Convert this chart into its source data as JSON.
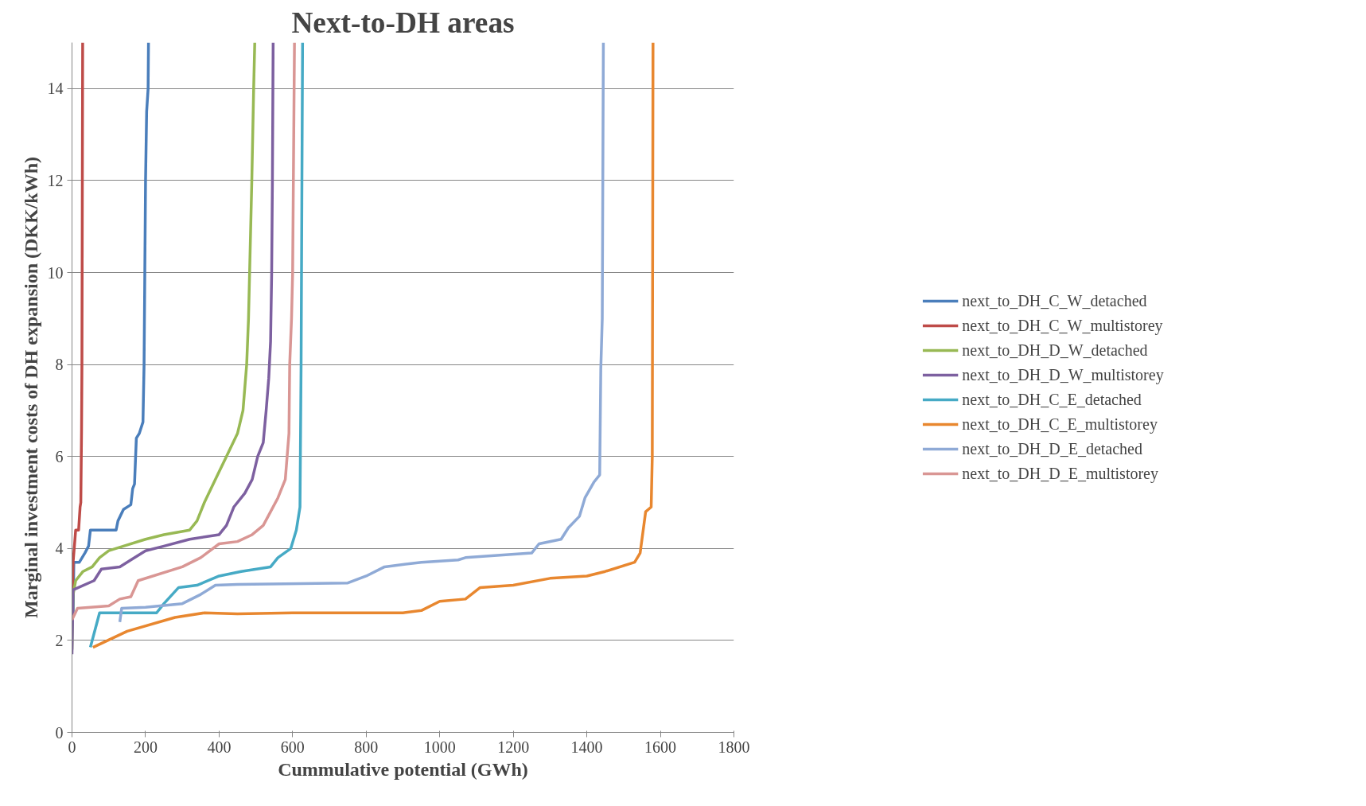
{
  "chart_data": {
    "type": "line",
    "title": "Next-to-DH areas",
    "xlabel": "Cummulative potential (GWh)",
    "ylabel": "Marginal investment costs of DH expansion (DKK/kWh)",
    "xlim": [
      0,
      1800
    ],
    "xticks": [
      0,
      200,
      400,
      600,
      800,
      1000,
      1200,
      1400,
      1600,
      1800
    ],
    "ylim": [
      0,
      15
    ],
    "yticks": [
      0,
      2,
      4,
      6,
      8,
      10,
      12,
      14
    ],
    "grid": "y",
    "legend": "right",
    "marker": "none",
    "line_style": "solid",
    "series": [
      {
        "name": "next_to_DH_C_W_detached",
        "color": "#4a7ebb",
        "x": [
          3,
          5,
          20,
          35,
          45,
          50,
          120,
          125,
          140,
          160,
          165,
          170,
          175,
          183,
          193,
          196,
          198,
          200,
          203,
          207,
          208
        ],
        "values": [
          2.5,
          3.7,
          3.7,
          3.9,
          4.05,
          4.4,
          4.4,
          4.6,
          4.85,
          4.95,
          5.3,
          5.4,
          6.4,
          6.5,
          6.75,
          8,
          10,
          12,
          13.5,
          14,
          15
        ]
      },
      {
        "name": "next_to_DH_C_W_multistorey",
        "color": "#be4b48",
        "x": [
          0,
          3,
          10,
          18,
          22,
          24,
          26,
          27,
          29
        ],
        "values": [
          2.5,
          3.7,
          4.4,
          4.4,
          4.9,
          5.0,
          6.6,
          8,
          15
        ]
      },
      {
        "name": "next_to_DH_D_W_detached",
        "color": "#98b954",
        "x": [
          0,
          3,
          10,
          30,
          55,
          75,
          100,
          140,
          200,
          250,
          320,
          340,
          360,
          390,
          420,
          450,
          465,
          475,
          480,
          483,
          489,
          494,
          497
        ],
        "values": [
          1.8,
          3,
          3.3,
          3.5,
          3.6,
          3.8,
          3.95,
          4.05,
          4.2,
          4.3,
          4.4,
          4.6,
          5.0,
          5.5,
          6.0,
          6.5,
          7.0,
          8,
          9,
          10,
          12,
          14,
          15
        ]
      },
      {
        "name": "next_to_DH_D_W_multistorey",
        "color": "#7d60a0",
        "x": [
          0,
          3,
          60,
          80,
          130,
          160,
          200,
          250,
          320,
          400,
          420,
          440,
          470,
          490,
          505,
          520,
          528,
          535,
          540,
          543,
          545,
          547
        ],
        "values": [
          1.7,
          3.1,
          3.3,
          3.55,
          3.6,
          3.75,
          3.95,
          4.05,
          4.2,
          4.3,
          4.5,
          4.9,
          5.2,
          5.5,
          6.0,
          6.3,
          7.0,
          7.7,
          8.5,
          10,
          12,
          15
        ]
      },
      {
        "name": "next_to_DH_C_E_detached",
        "color": "#46aac5",
        "x": [
          50,
          75,
          230,
          250,
          290,
          340,
          400,
          460,
          540,
          560,
          595,
          610,
          620,
          623,
          627
        ],
        "values": [
          1.85,
          2.6,
          2.6,
          2.8,
          3.15,
          3.2,
          3.4,
          3.5,
          3.6,
          3.8,
          4.0,
          4.4,
          4.9,
          8,
          15
        ]
      },
      {
        "name": "next_to_DH_C_E_multistorey",
        "color": "#e8872f",
        "x": [
          57,
          150,
          280,
          360,
          450,
          600,
          900,
          950,
          1000,
          1070,
          1110,
          1200,
          1300,
          1400,
          1450,
          1530,
          1545,
          1560,
          1575,
          1578,
          1580
        ],
        "values": [
          1.85,
          2.2,
          2.5,
          2.6,
          2.58,
          2.6,
          2.6,
          2.65,
          2.85,
          2.9,
          3.15,
          3.2,
          3.35,
          3.4,
          3.5,
          3.7,
          3.9,
          4.8,
          4.9,
          6,
          15
        ]
      },
      {
        "name": "next_to_DH_D_E_detached",
        "color": "#8faad6",
        "x": [
          130,
          135,
          200,
          300,
          350,
          390,
          450,
          750,
          800,
          850,
          950,
          1050,
          1070,
          1250,
          1270,
          1330,
          1350,
          1380,
          1395,
          1420,
          1435,
          1438,
          1442,
          1445
        ],
        "values": [
          2.4,
          2.7,
          2.72,
          2.8,
          3.0,
          3.2,
          3.22,
          3.25,
          3.4,
          3.6,
          3.7,
          3.75,
          3.8,
          3.9,
          4.1,
          4.2,
          4.45,
          4.7,
          5.1,
          5.45,
          5.6,
          7.9,
          9,
          15
        ]
      },
      {
        "name": "next_to_DH_D_E_multistorey",
        "color": "#d99694",
        "x": [
          0,
          15,
          100,
          130,
          160,
          180,
          300,
          350,
          400,
          450,
          490,
          520,
          540,
          560,
          580,
          590,
          592,
          597,
          600,
          605
        ],
        "values": [
          2.45,
          2.7,
          2.75,
          2.9,
          2.95,
          3.3,
          3.6,
          3.8,
          4.1,
          4.15,
          4.3,
          4.5,
          4.8,
          5.1,
          5.5,
          6.5,
          8,
          9,
          10,
          15
        ]
      }
    ]
  }
}
